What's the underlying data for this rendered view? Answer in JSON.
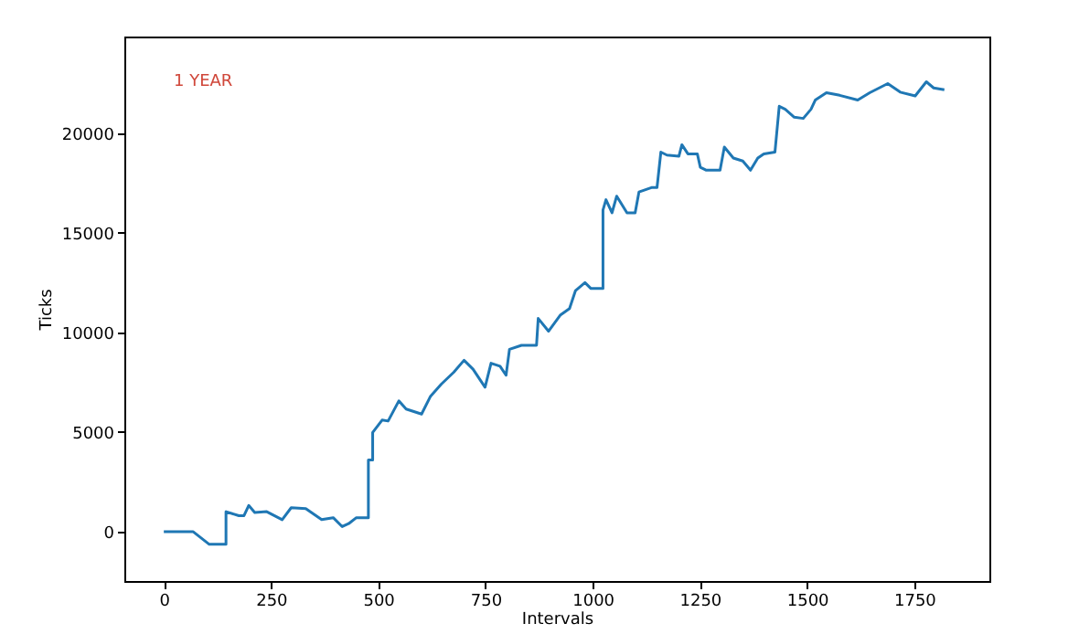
{
  "chart_data": {
    "type": "line",
    "xlabel": "Intervals",
    "ylabel": "Ticks",
    "annotations": [
      "1 YEAR"
    ],
    "x": [
      0,
      68,
      106,
      145,
      145,
      175,
      187,
      198,
      212,
      240,
      276,
      297,
      331,
      368,
      395,
      416,
      431,
      449,
      477,
      477,
      487,
      487,
      509,
      523,
      548,
      565,
      601,
      622,
      647,
      676,
      700,
      721,
      749,
      763,
      784,
      798,
      806,
      834,
      869,
      873,
      897,
      925,
      946,
      960,
      982,
      996,
      1024,
      1024,
      1031,
      1045,
      1056,
      1080,
      1099,
      1108,
      1137,
      1150,
      1159,
      1173,
      1201,
      1208,
      1222,
      1244,
      1251,
      1265,
      1297,
      1307,
      1328,
      1350,
      1368,
      1385,
      1399,
      1425,
      1435,
      1449,
      1470,
      1491,
      1509,
      1519,
      1545,
      1576,
      1618,
      1646,
      1688,
      1717,
      1752,
      1778,
      1795,
      1820
    ],
    "series": [
      {
        "color": "#1f77b4",
        "values": [
          0,
          0,
          -640,
          -640,
          1000,
          800,
          800,
          1310,
          960,
          1000,
          600,
          1200,
          1150,
          600,
          700,
          250,
          400,
          700,
          700,
          3600,
          3600,
          4980,
          5600,
          5550,
          6560,
          6150,
          5900,
          6800,
          7400,
          8000,
          8600,
          8150,
          7250,
          8450,
          8300,
          7850,
          9150,
          9350,
          9350,
          10700,
          10060,
          10880,
          11200,
          12100,
          12500,
          12200,
          12200,
          16140,
          16660,
          16000,
          16840,
          16000,
          16000,
          17050,
          17270,
          17270,
          19050,
          18900,
          18840,
          19420,
          18960,
          18960,
          18290,
          18140,
          18140,
          19300,
          18750,
          18600,
          18140,
          18750,
          18960,
          19050,
          21350,
          21200,
          20800,
          20740,
          21200,
          21660,
          22030,
          21900,
          21660,
          22030,
          22490,
          22060,
          21870,
          22580,
          22270,
          22180
        ]
      }
    ],
    "xlim": [
      -92,
      1925
    ],
    "ylim": [
      -2480,
      24850
    ],
    "xticks": [
      0,
      250,
      500,
      750,
      1000,
      1250,
      1500,
      1750
    ],
    "yticks": [
      0,
      5000,
      10000,
      15000,
      20000
    ],
    "grid": false,
    "legend": false
  }
}
